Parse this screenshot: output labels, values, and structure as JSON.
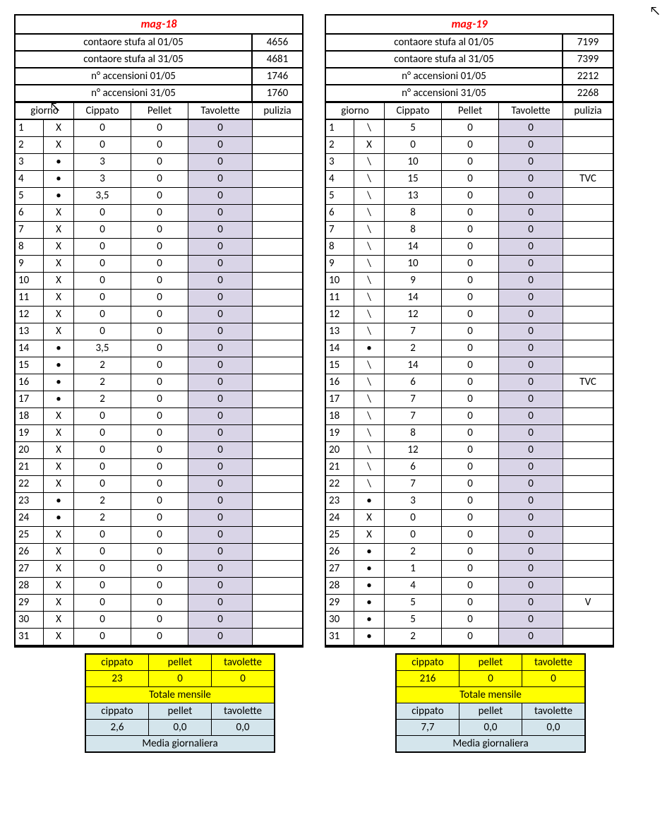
{
  "left": {
    "title": "mag-18",
    "info": [
      {
        "label": "contaore stufa al 01/05",
        "value": "4656"
      },
      {
        "label": "contaore stufa al 31/05",
        "value": "4681"
      },
      {
        "label": "n° accensioni 01/05",
        "value": "1746"
      },
      {
        "label": "n° accensioni 31/05",
        "value": "1760"
      }
    ],
    "headers": {
      "giorno": "giorno",
      "cippato": "Cippato",
      "pellet": "Pellet",
      "tavolette": "Tavolette",
      "pulizia": "pulizia"
    },
    "rows": [
      {
        "d": "1",
        "m": "X",
        "c": "0",
        "p": "0",
        "t": "0",
        "z": ""
      },
      {
        "d": "2",
        "m": "X",
        "c": "0",
        "p": "0",
        "t": "0",
        "z": ""
      },
      {
        "d": "3",
        "m": "•",
        "c": "3",
        "p": "0",
        "t": "0",
        "z": ""
      },
      {
        "d": "4",
        "m": "•",
        "c": "3",
        "p": "0",
        "t": "0",
        "z": ""
      },
      {
        "d": "5",
        "m": "•",
        "c": "3,5",
        "p": "0",
        "t": "0",
        "z": ""
      },
      {
        "d": "6",
        "m": "X",
        "c": "0",
        "p": "0",
        "t": "0",
        "z": ""
      },
      {
        "d": "7",
        "m": "X",
        "c": "0",
        "p": "0",
        "t": "0",
        "z": ""
      },
      {
        "d": "8",
        "m": "X",
        "c": "0",
        "p": "0",
        "t": "0",
        "z": ""
      },
      {
        "d": "9",
        "m": "X",
        "c": "0",
        "p": "0",
        "t": "0",
        "z": ""
      },
      {
        "d": "10",
        "m": "X",
        "c": "0",
        "p": "0",
        "t": "0",
        "z": ""
      },
      {
        "d": "11",
        "m": "X",
        "c": "0",
        "p": "0",
        "t": "0",
        "z": ""
      },
      {
        "d": "12",
        "m": "X",
        "c": "0",
        "p": "0",
        "t": "0",
        "z": ""
      },
      {
        "d": "13",
        "m": "X",
        "c": "0",
        "p": "0",
        "t": "0",
        "z": ""
      },
      {
        "d": "14",
        "m": "•",
        "c": "3,5",
        "p": "0",
        "t": "0",
        "z": ""
      },
      {
        "d": "15",
        "m": "•",
        "c": "2",
        "p": "0",
        "t": "0",
        "z": ""
      },
      {
        "d": "16",
        "m": "•",
        "c": "2",
        "p": "0",
        "t": "0",
        "z": ""
      },
      {
        "d": "17",
        "m": "•",
        "c": "2",
        "p": "0",
        "t": "0",
        "z": ""
      },
      {
        "d": "18",
        "m": "X",
        "c": "0",
        "p": "0",
        "t": "0",
        "z": ""
      },
      {
        "d": "19",
        "m": "X",
        "c": "0",
        "p": "0",
        "t": "0",
        "z": ""
      },
      {
        "d": "20",
        "m": "X",
        "c": "0",
        "p": "0",
        "t": "0",
        "z": ""
      },
      {
        "d": "21",
        "m": "X",
        "c": "0",
        "p": "0",
        "t": "0",
        "z": ""
      },
      {
        "d": "22",
        "m": "X",
        "c": "0",
        "p": "0",
        "t": "0",
        "z": ""
      },
      {
        "d": "23",
        "m": "•",
        "c": "2",
        "p": "0",
        "t": "0",
        "z": ""
      },
      {
        "d": "24",
        "m": "•",
        "c": "2",
        "p": "0",
        "t": "0",
        "z": ""
      },
      {
        "d": "25",
        "m": "X",
        "c": "0",
        "p": "0",
        "t": "0",
        "z": ""
      },
      {
        "d": "26",
        "m": "X",
        "c": "0",
        "p": "0",
        "t": "0",
        "z": ""
      },
      {
        "d": "27",
        "m": "X",
        "c": "0",
        "p": "0",
        "t": "0",
        "z": ""
      },
      {
        "d": "28",
        "m": "X",
        "c": "0",
        "p": "0",
        "t": "0",
        "z": ""
      },
      {
        "d": "29",
        "m": "X",
        "c": "0",
        "p": "0",
        "t": "0",
        "z": ""
      },
      {
        "d": "30",
        "m": "X",
        "c": "0",
        "p": "0",
        "t": "0",
        "z": ""
      },
      {
        "d": "31",
        "m": "X",
        "c": "0",
        "p": "0",
        "t": "0",
        "z": ""
      }
    ],
    "summary": {
      "totals_labels": {
        "c": "cippato",
        "p": "pellet",
        "t": "tavolette"
      },
      "totals": {
        "c": "23",
        "p": "0",
        "t": "0"
      },
      "totals_title": "Totale mensile",
      "avg_labels": {
        "c": "cippato",
        "p": "pellet",
        "t": "tavolette"
      },
      "avg": {
        "c": "2,6",
        "p": "0,0",
        "t": "0,0"
      },
      "avg_title": "Media giornaliera"
    }
  },
  "right": {
    "title": "mag-19",
    "info": [
      {
        "label": "contaore stufa al 01/05",
        "value": "7199"
      },
      {
        "label": "contaore stufa al 31/05",
        "value": "7399"
      },
      {
        "label": "n° accensioni 01/05",
        "value": "2212"
      },
      {
        "label": "n° accensioni 31/05",
        "value": "2268"
      }
    ],
    "headers": {
      "giorno": "giorno",
      "cippato": "Cippato",
      "pellet": "Pellet",
      "tavolette": "Tavolette",
      "pulizia": "pulizia"
    },
    "rows": [
      {
        "d": "1",
        "m": "\\",
        "c": "5",
        "p": "0",
        "t": "0",
        "z": ""
      },
      {
        "d": "2",
        "m": "X",
        "c": "0",
        "p": "0",
        "t": "0",
        "z": ""
      },
      {
        "d": "3",
        "m": "\\",
        "c": "10",
        "p": "0",
        "t": "0",
        "z": ""
      },
      {
        "d": "4",
        "m": "\\",
        "c": "15",
        "p": "0",
        "t": "0",
        "z": "TVC"
      },
      {
        "d": "5",
        "m": "\\",
        "c": "13",
        "p": "0",
        "t": "0",
        "z": ""
      },
      {
        "d": "6",
        "m": "\\",
        "c": "8",
        "p": "0",
        "t": "0",
        "z": ""
      },
      {
        "d": "7",
        "m": "\\",
        "c": "8",
        "p": "0",
        "t": "0",
        "z": ""
      },
      {
        "d": "8",
        "m": "\\",
        "c": "14",
        "p": "0",
        "t": "0",
        "z": ""
      },
      {
        "d": "9",
        "m": "\\",
        "c": "10",
        "p": "0",
        "t": "0",
        "z": ""
      },
      {
        "d": "10",
        "m": "\\",
        "c": "9",
        "p": "0",
        "t": "0",
        "z": ""
      },
      {
        "d": "11",
        "m": "\\",
        "c": "14",
        "p": "0",
        "t": "0",
        "z": ""
      },
      {
        "d": "12",
        "m": "\\",
        "c": "12",
        "p": "0",
        "t": "0",
        "z": ""
      },
      {
        "d": "13",
        "m": "\\",
        "c": "7",
        "p": "0",
        "t": "0",
        "z": ""
      },
      {
        "d": "14",
        "m": "•",
        "c": "2",
        "p": "0",
        "t": "0",
        "z": ""
      },
      {
        "d": "15",
        "m": "\\",
        "c": "14",
        "p": "0",
        "t": "0",
        "z": ""
      },
      {
        "d": "16",
        "m": "\\",
        "c": "6",
        "p": "0",
        "t": "0",
        "z": "TVC"
      },
      {
        "d": "17",
        "m": "\\",
        "c": "7",
        "p": "0",
        "t": "0",
        "z": ""
      },
      {
        "d": "18",
        "m": "\\",
        "c": "7",
        "p": "0",
        "t": "0",
        "z": ""
      },
      {
        "d": "19",
        "m": "\\",
        "c": "8",
        "p": "0",
        "t": "0",
        "z": ""
      },
      {
        "d": "20",
        "m": "\\",
        "c": "12",
        "p": "0",
        "t": "0",
        "z": ""
      },
      {
        "d": "21",
        "m": "\\",
        "c": "6",
        "p": "0",
        "t": "0",
        "z": ""
      },
      {
        "d": "22",
        "m": "\\",
        "c": "7",
        "p": "0",
        "t": "0",
        "z": ""
      },
      {
        "d": "23",
        "m": "•",
        "c": "3",
        "p": "0",
        "t": "0",
        "z": ""
      },
      {
        "d": "24",
        "m": "X",
        "c": "0",
        "p": "0",
        "t": "0",
        "z": ""
      },
      {
        "d": "25",
        "m": "X",
        "c": "0",
        "p": "0",
        "t": "0",
        "z": ""
      },
      {
        "d": "26",
        "m": "•",
        "c": "2",
        "p": "0",
        "t": "0",
        "z": ""
      },
      {
        "d": "27",
        "m": "•",
        "c": "1",
        "p": "0",
        "t": "0",
        "z": ""
      },
      {
        "d": "28",
        "m": "•",
        "c": "4",
        "p": "0",
        "t": "0",
        "z": ""
      },
      {
        "d": "29",
        "m": "•",
        "c": "5",
        "p": "0",
        "t": "0",
        "z": "V"
      },
      {
        "d": "30",
        "m": "•",
        "c": "5",
        "p": "0",
        "t": "0",
        "z": ""
      },
      {
        "d": "31",
        "m": "•",
        "c": "2",
        "p": "0",
        "t": "0",
        "z": ""
      }
    ],
    "summary": {
      "totals_labels": {
        "c": "cippato",
        "p": "pellet",
        "t": "tavolette"
      },
      "totals": {
        "c": "216",
        "p": "0",
        "t": "0"
      },
      "totals_title": "Totale mensile",
      "avg_labels": {
        "c": "cippato",
        "p": "pellet",
        "t": "tavolette"
      },
      "avg": {
        "c": "7,7",
        "p": "0,0",
        "t": "0,0"
      },
      "avg_title": "Media giornaliera"
    }
  }
}
